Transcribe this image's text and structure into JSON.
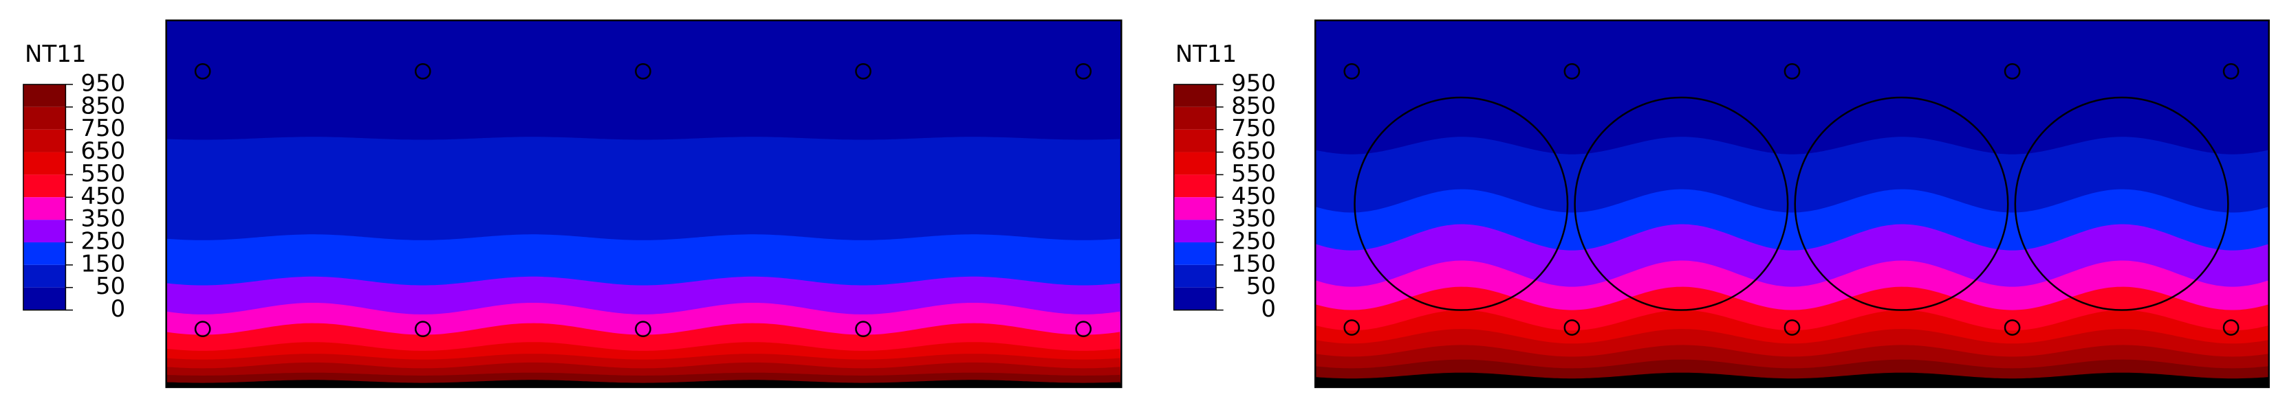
{
  "panels": [
    {
      "legend": {
        "title": "NT11",
        "labels": [
          "950",
          "850",
          "750",
          "650",
          "550",
          "450",
          "350",
          "250",
          "150",
          "50",
          "0"
        ],
        "colors": [
          "#7f0000",
          "#a30000",
          "#c60000",
          "#e50000",
          "#ff0022",
          "#ff00c8",
          "#9400ff",
          "#0033ff",
          "#0016c8",
          "#0000a6"
        ]
      }
    },
    {
      "legend": {
        "title": "NT11",
        "labels": [
          "950",
          "850",
          "750",
          "650",
          "550",
          "450",
          "350",
          "250",
          "150",
          "50",
          "0"
        ],
        "colors": [
          "#7f0000",
          "#a30000",
          "#c60000",
          "#e50000",
          "#ff0022",
          "#ff00c8",
          "#9400ff",
          "#0033ff",
          "#0016c8",
          "#0000a6"
        ]
      }
    }
  ]
}
